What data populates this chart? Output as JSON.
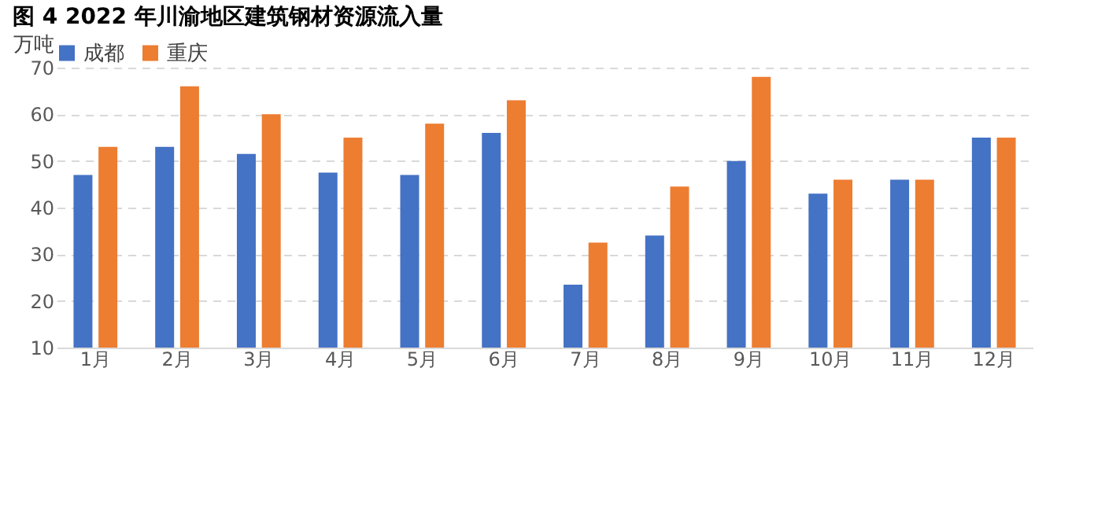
{
  "chart_data": {
    "type": "bar",
    "title": "图 4 2022 年川渝地区建筑钢材资源流入量",
    "ylabel": "万吨",
    "categories": [
      "1月",
      "2月",
      "3月",
      "4月",
      "5月",
      "6月",
      "7月",
      "8月",
      "9月",
      "10月",
      "11月",
      "12月"
    ],
    "series": [
      {
        "name": "成都",
        "color": "#4472c4",
        "values": [
          47,
          53,
          51.5,
          47.5,
          47,
          56,
          23.5,
          34,
          50,
          43,
          46,
          55
        ]
      },
      {
        "name": "重庆",
        "color": "#ed7d31",
        "values": [
          53,
          66,
          60,
          55,
          58,
          63,
          32.5,
          44.5,
          68,
          46,
          46,
          55
        ]
      }
    ],
    "ylim": [
      10,
      70
    ],
    "yticks": [
      10,
      20,
      30,
      40,
      50,
      60,
      70
    ],
    "grid": "y",
    "legend": "top"
  }
}
